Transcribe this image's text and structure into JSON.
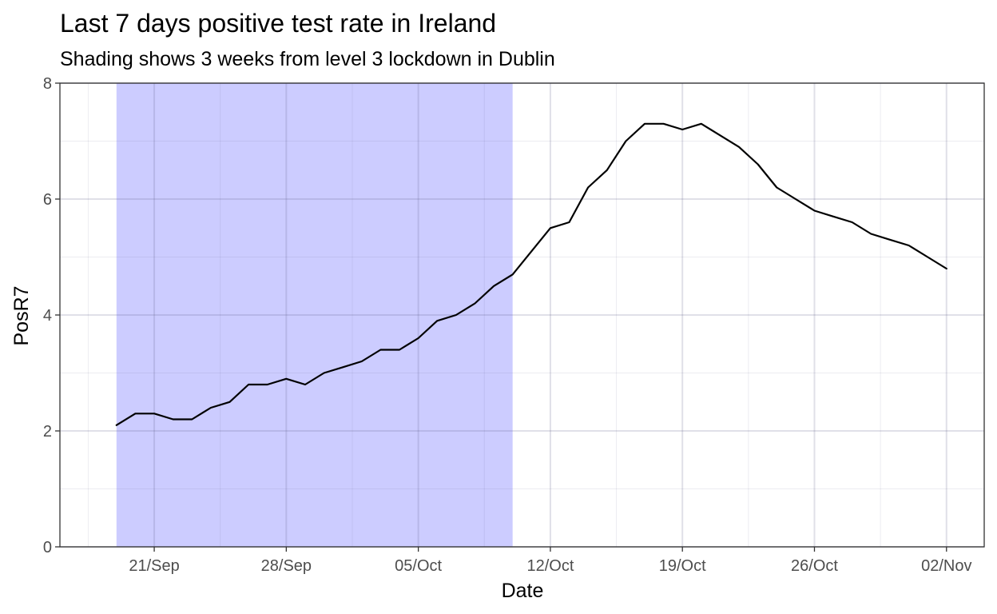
{
  "chart_data": {
    "type": "line",
    "title": "Last 7 days positive test rate in Ireland",
    "subtitle": "Shading shows 3 weeks from level 3 lockdown in Dublin",
    "xlabel": "Date",
    "ylabel": "PosR7",
    "x_tick_labels": [
      "21/Sep",
      "28/Sep",
      "05/Oct",
      "12/Oct",
      "19/Oct",
      "26/Oct",
      "02/Nov"
    ],
    "x_tick_dates": [
      "2020-09-21",
      "2020-09-28",
      "2020-10-05",
      "2020-10-12",
      "2020-10-19",
      "2020-10-26",
      "2020-11-02"
    ],
    "xlim": [
      "2020-09-16",
      "2020-11-04"
    ],
    "ylim": [
      0,
      8
    ],
    "y_ticks": [
      0,
      2,
      4,
      6,
      8
    ],
    "grid": true,
    "shading": {
      "from": "2020-09-19",
      "to": "2020-10-10",
      "color": "#ccccff"
    },
    "line_color": "#000000",
    "series": [
      {
        "x": [
          "2020-09-19",
          "2020-09-20",
          "2020-09-21",
          "2020-09-22",
          "2020-09-23",
          "2020-09-24",
          "2020-09-25",
          "2020-09-26",
          "2020-09-27",
          "2020-09-28",
          "2020-09-29",
          "2020-09-30",
          "2020-10-01",
          "2020-10-02",
          "2020-10-03",
          "2020-10-04",
          "2020-10-05",
          "2020-10-06",
          "2020-10-07",
          "2020-10-08",
          "2020-10-09",
          "2020-10-10",
          "2020-10-11",
          "2020-10-12",
          "2020-10-13",
          "2020-10-14",
          "2020-10-15",
          "2020-10-16",
          "2020-10-17",
          "2020-10-18",
          "2020-10-19",
          "2020-10-20",
          "2020-10-21",
          "2020-10-22",
          "2020-10-23",
          "2020-10-24",
          "2020-10-25",
          "2020-10-26",
          "2020-10-27",
          "2020-10-28",
          "2020-10-29",
          "2020-10-30",
          "2020-10-31",
          "2020-11-01",
          "2020-11-02"
        ],
        "values": [
          2.1,
          2.3,
          2.3,
          2.2,
          2.2,
          2.4,
          2.5,
          2.8,
          2.8,
          2.9,
          2.8,
          3.0,
          3.1,
          3.2,
          3.4,
          3.4,
          3.6,
          3.9,
          4.0,
          4.2,
          4.5,
          4.7,
          5.1,
          5.5,
          5.6,
          6.2,
          6.5,
          7.0,
          7.3,
          7.3,
          7.2,
          7.3,
          7.1,
          6.9,
          6.6,
          6.2,
          6.0,
          5.8,
          5.7,
          5.6,
          5.4,
          5.3,
          5.2,
          5.0,
          4.8
        ]
      }
    ]
  }
}
